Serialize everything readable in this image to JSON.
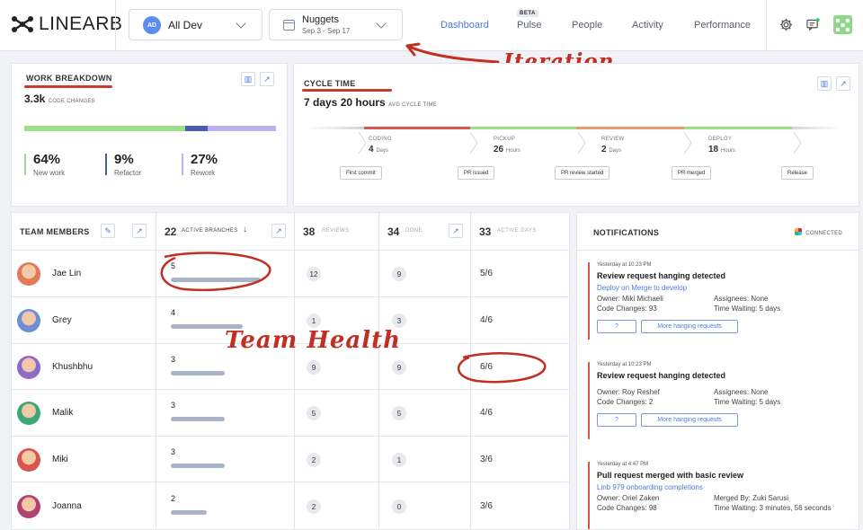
{
  "header": {
    "logo_text": "LINEARB",
    "team_selector": {
      "avatar_initials": "AD",
      "label": "All Dev"
    },
    "iteration_selector": {
      "title": "Nuggets",
      "range": "Sep 3 - Sep 17"
    },
    "nav": [
      {
        "label": "Dashboard",
        "active": true
      },
      {
        "label": "Pulse",
        "badge": "BETA"
      },
      {
        "label": "People"
      },
      {
        "label": "Activity"
      },
      {
        "label": "Performance"
      }
    ]
  },
  "annotations": {
    "iteration": "Iteration",
    "team_health": "Team Health"
  },
  "work_breakdown": {
    "title": "WORK BREAKDOWN",
    "total": "3.3k",
    "total_label": "CODE CHANGES",
    "segments": [
      {
        "name": "New work",
        "pct": "64%",
        "value": 64,
        "color": "#9ee08a"
      },
      {
        "name": "Refactor",
        "pct": "9%",
        "value": 9,
        "color": "#4a5bb0"
      },
      {
        "name": "Rework",
        "pct": "27%",
        "value": 27,
        "color": "#b9b2ee"
      }
    ]
  },
  "cycle_time": {
    "title": "CYCLE TIME",
    "value": "7 days 20 hours",
    "value_label": "AVG CYCLE TIME",
    "stages": [
      {
        "label": "CODING",
        "value": "4",
        "unit": "Days",
        "color": "#d9534f"
      },
      {
        "label": "PICKUP",
        "value": "26",
        "unit": "Hours",
        "color": "#9ee08a"
      },
      {
        "label": "REVIEW",
        "value": "2",
        "unit": "Days",
        "color": "#e89a6a"
      },
      {
        "label": "DEPLOY",
        "value": "18",
        "unit": "Hours",
        "color": "#9ee08a"
      }
    ],
    "events": [
      "First commit",
      "PR issued",
      "PR review started",
      "PR merged",
      "Release"
    ]
  },
  "team_table": {
    "headers": {
      "members": {
        "label": "TEAM MEMBERS"
      },
      "branches": {
        "count": "22",
        "label": "ACTIVE BRANCHES"
      },
      "reviews": {
        "count": "38",
        "label": "REVIEWS"
      },
      "done": {
        "count": "34",
        "label": "DONE"
      },
      "days": {
        "count": "33",
        "label": "ACTIVE DAYS"
      }
    },
    "rows": [
      {
        "name": "Jae Lin",
        "branches": "5",
        "bar_fraction": 1.0,
        "reviews": "12",
        "done": "9",
        "days": "5/6",
        "avatar": "#e07a5a"
      },
      {
        "name": "Grey",
        "branches": "4",
        "bar_fraction": 0.8,
        "reviews": "1",
        "done": "3",
        "days": "4/6",
        "avatar": "#6b8fd8"
      },
      {
        "name": "Khushbhu",
        "branches": "3",
        "bar_fraction": 0.6,
        "reviews": "9",
        "done": "9",
        "days": "6/6",
        "avatar": "#8c6bc9"
      },
      {
        "name": "Malik",
        "branches": "3",
        "bar_fraction": 0.6,
        "reviews": "5",
        "done": "5",
        "days": "4/6",
        "avatar": "#3aa876"
      },
      {
        "name": "Miki",
        "branches": "3",
        "bar_fraction": 0.6,
        "reviews": "2",
        "done": "1",
        "days": "3/6",
        "avatar": "#d9534f"
      },
      {
        "name": "Joanna",
        "branches": "2",
        "bar_fraction": 0.4,
        "reviews": "2",
        "done": "0",
        "days": "3/6",
        "avatar": "#b0446e"
      }
    ]
  },
  "notifications": {
    "title": "NOTIFICATIONS",
    "status": "CONNECTED",
    "items": [
      {
        "time": "Yesterday at 10:23 PM",
        "headline": "Review request hanging detected",
        "link": "Deploy on Merge to develop",
        "meta_left": [
          "Owner: Miki Michaeli",
          "Code Changes: 93"
        ],
        "meta_right": [
          "Assignees: None",
          "Time Waiting: 5 days"
        ],
        "buttons": [
          "?",
          "More hanging requests"
        ]
      },
      {
        "time": "Yesterday at 10:23 PM",
        "headline": "Review request hanging detected",
        "link": "",
        "meta_left": [
          "Owner: Roy Reshef",
          "Code Changes: 2"
        ],
        "meta_right": [
          "Assignees: None",
          "Time Waiting: 5 days"
        ],
        "buttons": [
          "?",
          "More hanging requests"
        ]
      },
      {
        "time": "Yesterday at 4:47 PM",
        "headline": "Pull request merged with basic review",
        "link": "Linb 979 onboarding completions",
        "meta_left": [
          "Owner: Oriel Zaken",
          "Code Changes: 98"
        ],
        "meta_right": [
          "Merged By: Zuki Sarusi",
          "Time Waiting: 3 minutes, 56 seconds"
        ],
        "buttons": []
      }
    ]
  }
}
